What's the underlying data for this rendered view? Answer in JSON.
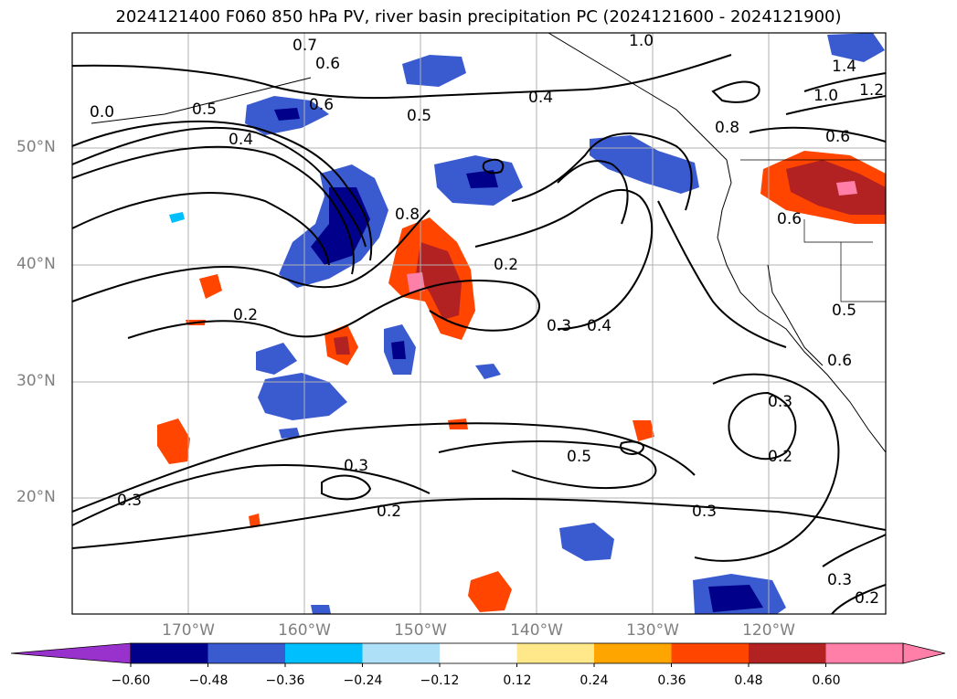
{
  "title": "2024121400 F060 850 hPa PV, river basin precipitation PC (2024121600 - 2024121900)",
  "lat_labels": [
    "50°N",
    "40°N",
    "30°N",
    "20°N"
  ],
  "lon_labels": [
    "170°W",
    "160°W",
    "150°W",
    "140°W",
    "130°W",
    "120°W"
  ],
  "contour_labels": [
    "0.7",
    "0.6",
    "1.0",
    "1.4",
    "1.2",
    "0.5",
    "0.6",
    "0.4",
    "0.5",
    "0.4",
    "1.0",
    "0.8",
    "0.6",
    "0.8",
    "0.6",
    "0.2",
    "0.2",
    "0.3",
    "0.4",
    "0.5",
    "0.6",
    "0.3",
    "0.5",
    "0.2",
    "0.3",
    "0.3",
    "0.2",
    "0.3",
    "0.3",
    "0.2",
    "0.0"
  ],
  "colorbar": {
    "tick_labels": [
      "−0.60",
      "−0.48",
      "−0.36",
      "−0.24",
      "−0.12",
      "0.12",
      "0.24",
      "0.36",
      "0.48",
      "0.60"
    ],
    "colors": [
      "#9932cc",
      "#00008b",
      "#3a5bd0",
      "#00bfff",
      "#aee0f8",
      "#ffffff",
      "#ffe88a",
      "#ffa500",
      "#ff4500",
      "#b22222",
      "#ff7fa8",
      "#ff7fa8"
    ]
  }
}
